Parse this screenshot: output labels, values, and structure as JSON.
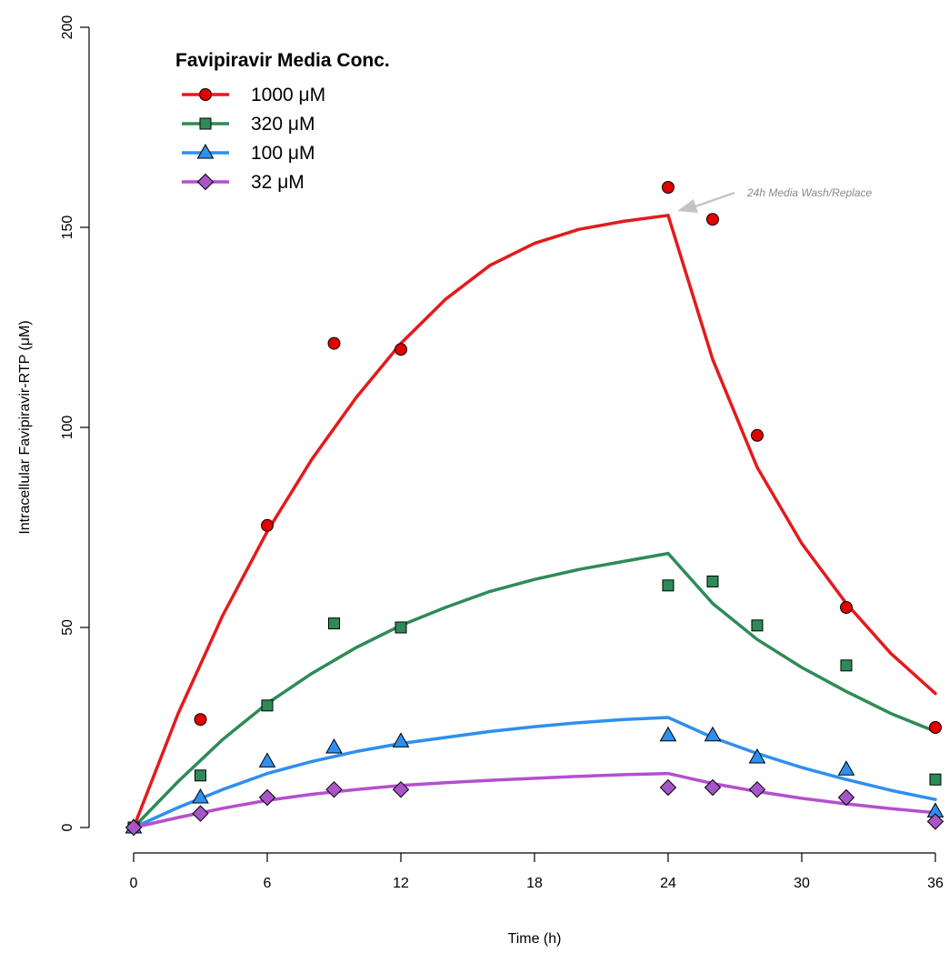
{
  "chart_data": {
    "type": "line",
    "title": "",
    "xlabel": "Time (h)",
    "ylabel": "Intracellular Favipiravir-RTP (μM)",
    "xlim": [
      0,
      36
    ],
    "ylim": [
      0,
      200
    ],
    "x_ticks": [
      0,
      6,
      12,
      18,
      24,
      30,
      36
    ],
    "y_ticks": [
      0,
      50,
      100,
      150,
      200
    ],
    "grid": false,
    "legend": {
      "title": "Favipiravir Media Conc.",
      "position": "top-left"
    },
    "annotation": {
      "text": "24h Media Wash/Replace",
      "x": 24,
      "y": 153
    },
    "series": [
      {
        "name": "1000 μM",
        "color": "#e41a1c",
        "marker": "circle",
        "marker_color": "#e00000",
        "observed": [
          [
            0,
            0
          ],
          [
            3,
            27
          ],
          [
            6,
            75.5
          ],
          [
            9,
            121
          ],
          [
            12,
            119.5
          ],
          [
            24,
            160
          ],
          [
            26,
            152
          ],
          [
            28,
            98
          ],
          [
            32,
            55
          ],
          [
            36,
            25
          ]
        ],
        "fit": [
          [
            0,
            0
          ],
          [
            2,
            28.5
          ],
          [
            4,
            53
          ],
          [
            6,
            74
          ],
          [
            8,
            92
          ],
          [
            10,
            107.5
          ],
          [
            12,
            121
          ],
          [
            14,
            132
          ],
          [
            16,
            140.5
          ],
          [
            18,
            146
          ],
          [
            20,
            149.5
          ],
          [
            22,
            151.5
          ],
          [
            24,
            153
          ],
          [
            26,
            117
          ],
          [
            28,
            90
          ],
          [
            30,
            71
          ],
          [
            32,
            56
          ],
          [
            34,
            43.5
          ],
          [
            36,
            33.5
          ]
        ]
      },
      {
        "name": "320 μM",
        "color": "#2e8b57",
        "marker": "square",
        "marker_color": "#2e8b57",
        "observed": [
          [
            0,
            0
          ],
          [
            3,
            13
          ],
          [
            6,
            30.5
          ],
          [
            9,
            51
          ],
          [
            12,
            50
          ],
          [
            24,
            60.5
          ],
          [
            26,
            61.5
          ],
          [
            28,
            50.5
          ],
          [
            32,
            40.5
          ],
          [
            36,
            12
          ]
        ],
        "fit": [
          [
            0,
            0
          ],
          [
            2,
            11.5
          ],
          [
            4,
            22
          ],
          [
            6,
            31
          ],
          [
            8,
            38.5
          ],
          [
            10,
            45
          ],
          [
            12,
            50.5
          ],
          [
            14,
            55
          ],
          [
            16,
            59
          ],
          [
            18,
            62
          ],
          [
            20,
            64.5
          ],
          [
            22,
            66.5
          ],
          [
            24,
            68.5
          ],
          [
            26,
            56
          ],
          [
            28,
            47
          ],
          [
            30,
            40
          ],
          [
            32,
            34
          ],
          [
            34,
            28.5
          ],
          [
            36,
            24
          ]
        ]
      },
      {
        "name": "100 μM",
        "color": "#2e8fef",
        "marker": "triangle",
        "marker_color": "#2e8fef",
        "observed": [
          [
            0,
            0
          ],
          [
            3,
            7.5
          ],
          [
            6,
            16.5
          ],
          [
            9,
            20
          ],
          [
            12,
            21.5
          ],
          [
            24,
            23
          ],
          [
            26,
            23
          ],
          [
            28,
            17.5
          ],
          [
            32,
            14.5
          ],
          [
            36,
            4
          ]
        ],
        "fit": [
          [
            0,
            0
          ],
          [
            2,
            5
          ],
          [
            4,
            9.5
          ],
          [
            6,
            13.5
          ],
          [
            8,
            16.5
          ],
          [
            10,
            19
          ],
          [
            12,
            21
          ],
          [
            14,
            22.5
          ],
          [
            16,
            24
          ],
          [
            18,
            25.2
          ],
          [
            20,
            26.2
          ],
          [
            22,
            27
          ],
          [
            24,
            27.5
          ],
          [
            26,
            22.5
          ],
          [
            28,
            18.5
          ],
          [
            30,
            15
          ],
          [
            32,
            12
          ],
          [
            34,
            9.3
          ],
          [
            36,
            7
          ]
        ]
      },
      {
        "name": "32 μM",
        "color": "#b44fcf",
        "marker": "diamond",
        "marker_color": "#a855c8",
        "observed": [
          [
            0,
            0
          ],
          [
            3,
            3.5
          ],
          [
            6,
            7.5
          ],
          [
            9,
            9.5
          ],
          [
            12,
            9.5
          ],
          [
            24,
            10
          ],
          [
            26,
            10
          ],
          [
            28,
            9.5
          ],
          [
            32,
            7.5
          ],
          [
            36,
            1.5
          ]
        ],
        "fit": [
          [
            0,
            0
          ],
          [
            2,
            2.5
          ],
          [
            4,
            4.8
          ],
          [
            6,
            6.8
          ],
          [
            8,
            8.3
          ],
          [
            10,
            9.5
          ],
          [
            12,
            10.5
          ],
          [
            14,
            11.2
          ],
          [
            16,
            11.8
          ],
          [
            18,
            12.3
          ],
          [
            20,
            12.8
          ],
          [
            22,
            13.2
          ],
          [
            24,
            13.5
          ],
          [
            26,
            11
          ],
          [
            28,
            9
          ],
          [
            30,
            7.3
          ],
          [
            32,
            5.9
          ],
          [
            34,
            4.7
          ],
          [
            36,
            3.7
          ]
        ]
      }
    ]
  }
}
